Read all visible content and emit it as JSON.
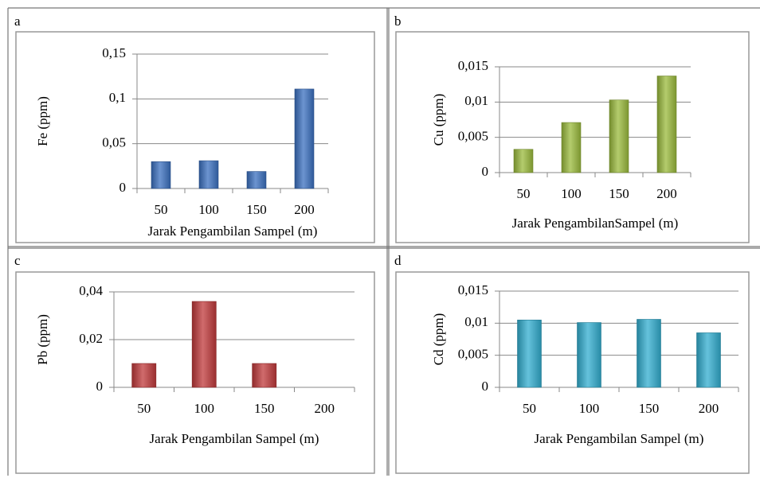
{
  "chart_data": [
    {
      "type": "bar",
      "panel": "a",
      "ylabel": "Fe (ppm)",
      "xlabel": "Jarak Pengambilan Sampel (m)",
      "categories": [
        "50",
        "100",
        "150",
        "200"
      ],
      "values": [
        0.03,
        0.031,
        0.019,
        0.111
      ],
      "color": "#3b70c0",
      "ylim": [
        0,
        0.15
      ],
      "yticks": [
        0,
        {
          "value": 0.05,
          "label": "0,05"
        },
        {
          "value": 0.1,
          "label": "0,1"
        },
        {
          "value": 0.15,
          "label": "0,15"
        }
      ],
      "grid": true
    },
    {
      "type": "bar",
      "panel": "b",
      "ylabel": "Cu (ppm)",
      "xlabel": "Jarak PengambilanSampel (m)",
      "categories": [
        "50",
        "100",
        "150",
        "200"
      ],
      "values": [
        0.0033,
        0.0071,
        0.0103,
        0.0137
      ],
      "color": "#9bbb3c",
      "ylim": [
        0,
        0.015
      ],
      "yticks": [
        0,
        {
          "value": 0.005,
          "label": "0,005"
        },
        {
          "value": 0.01,
          "label": "0,01"
        },
        {
          "value": 0.015,
          "label": "0,015"
        }
      ],
      "grid": true
    },
    {
      "type": "bar",
      "panel": "c",
      "ylabel": "Pb (ppm)",
      "xlabel": "Jarak Pengambilan Sampel (m)",
      "categories": [
        "50",
        "100",
        "150",
        "200"
      ],
      "values": [
        0.01,
        0.036,
        0.01,
        0
      ],
      "color": "#c0393b",
      "ylim": [
        0,
        0.04
      ],
      "yticks": [
        0,
        {
          "value": 0.02,
          "label": "0,02"
        },
        {
          "value": 0.04,
          "label": "0,04"
        }
      ],
      "grid": true
    },
    {
      "type": "bar",
      "panel": "d",
      "ylabel": "Cd (ppm)",
      "xlabel": "Jarak Pengambilan Sampel (m)",
      "categories": [
        "50",
        "100",
        "150",
        "200"
      ],
      "values": [
        0.0105,
        0.0101,
        0.0106,
        0.0085
      ],
      "color": "#32aed0",
      "ylim": [
        0,
        0.015
      ],
      "yticks": [
        0,
        {
          "value": 0.005,
          "label": "0,005"
        },
        {
          "value": 0.01,
          "label": "0,01"
        },
        {
          "value": 0.015,
          "label": "0,015"
        }
      ],
      "grid": true
    }
  ]
}
